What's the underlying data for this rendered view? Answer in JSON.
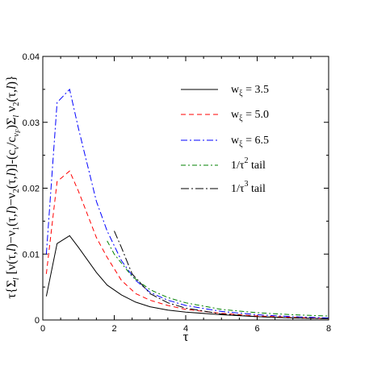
{
  "chart_data": {
    "type": "line",
    "xlabel": "τ",
    "ylabel_parts": {
      "p1": "τ{Σ",
      "p1sub": "l",
      "p2": " [ν(τ,",
      "p2i": "l",
      "p3": ")−ν",
      "p3sub": "1",
      "p4": "(τ,",
      "p4i": "l",
      "p5": ")−ν",
      "p5sub": "2",
      "p6": "(τ,",
      "p6i": "l",
      "p7": ")]-(c",
      "p7sub": "v",
      "p8": "/c",
      "p8sub": "v",
      "p8subsub": "F",
      "p9": ")Σ",
      "p9sub": "l",
      "p10": " ν",
      "p10sub": "2",
      "p11": "(τ,",
      "p11i": "l",
      "p12": ")}"
    },
    "xlim": [
      0,
      8
    ],
    "ylim": [
      0,
      0.04
    ],
    "xticks": [
      "0",
      "2",
      "4",
      "6",
      "8"
    ],
    "yticks": [
      "0",
      "0.01",
      "0.02",
      "0.03",
      "0.04"
    ],
    "legend_position": "top-right",
    "series": [
      {
        "name": "w_xi = 3.5",
        "color": "#000000",
        "dash": "solid",
        "x": [
          0.1,
          0.4,
          0.75,
          1.0,
          1.5,
          1.8,
          2.2,
          2.6,
          3.0,
          3.5,
          4.0,
          5.0,
          6.0,
          7.0,
          8.0
        ],
        "y": [
          0.0036,
          0.0116,
          0.0128,
          0.011,
          0.0072,
          0.0053,
          0.0038,
          0.0027,
          0.002,
          0.0015,
          0.0012,
          0.0008,
          0.0005,
          0.0003,
          0.0002
        ]
      },
      {
        "name": "w_xi = 5.0",
        "color": "#ff0000",
        "dash": "dashed",
        "x": [
          0.1,
          0.4,
          0.75,
          1.0,
          1.5,
          1.8,
          2.2,
          2.6,
          3.0,
          3.5,
          4.0,
          5.0,
          6.0,
          7.0,
          8.0
        ],
        "y": [
          0.007,
          0.021,
          0.0226,
          0.0195,
          0.0125,
          0.0095,
          0.006,
          0.004,
          0.003,
          0.0022,
          0.0016,
          0.001,
          0.0006,
          0.0004,
          0.0002
        ]
      },
      {
        "name": "w_xi = 6.5",
        "color": "#0000ff",
        "dash": "dashdot",
        "x": [
          0.1,
          0.4,
          0.75,
          1.0,
          1.5,
          1.8,
          2.2,
          2.6,
          3.0,
          3.5,
          4.0,
          5.0,
          6.0,
          7.0,
          8.0
        ],
        "y": [
          0.01,
          0.033,
          0.035,
          0.029,
          0.018,
          0.0135,
          0.009,
          0.006,
          0.0042,
          0.003,
          0.0022,
          0.0013,
          0.0008,
          0.0005,
          0.0003
        ]
      },
      {
        "name": "1/τ^2 tail",
        "color": "#008000",
        "dash": "dashdotgreen",
        "x": [
          1.8,
          2.0,
          2.5,
          3.0,
          3.5,
          4.0,
          5.0,
          6.0,
          7.0,
          8.0
        ],
        "y": [
          0.012,
          0.01,
          0.0066,
          0.0046,
          0.0034,
          0.0026,
          0.0016,
          0.0011,
          0.0008,
          0.0006
        ]
      },
      {
        "name": "1/τ^3 tail",
        "color": "#000000",
        "dash": "dashdotblack",
        "x": [
          2.0,
          2.2,
          2.5,
          3.0,
          3.5,
          4.0,
          5.0,
          6.0,
          7.0,
          8.0
        ],
        "y": [
          0.0135,
          0.011,
          0.007,
          0.004,
          0.0026,
          0.0018,
          0.0009,
          0.0005,
          0.0003,
          0.0002
        ]
      }
    ],
    "legend": [
      {
        "label": "w",
        "sub": "ξ",
        "rest": " = 3.5"
      },
      {
        "label": "w",
        "sub": "ξ",
        "rest": " = 5.0"
      },
      {
        "label": "w",
        "sub": "ξ",
        "rest": " = 6.5"
      },
      {
        "label": "1/τ",
        "sup": "2",
        "rest": " tail"
      },
      {
        "label": "1/τ",
        "sup": "3",
        "rest": " tail"
      }
    ]
  }
}
